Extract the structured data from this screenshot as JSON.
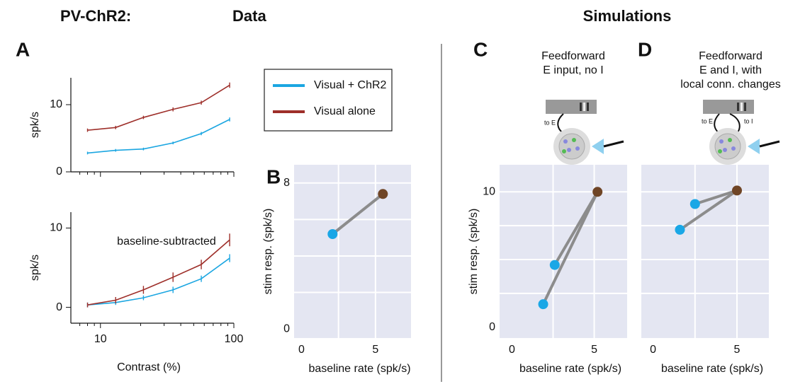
{
  "header": {
    "left": "PV-ChR2:",
    "data": "Data",
    "sim": "Simulations"
  },
  "chart_data": [
    {
      "type": "line",
      "label": "A",
      "ylabel": "spk/s",
      "xscale": "log",
      "x": [
        8,
        13,
        21,
        35,
        57,
        93
      ],
      "xlim": [
        6,
        100
      ],
      "xticks": [
        10,
        100
      ],
      "show_xtick_labels": false,
      "xminor": [
        7,
        8,
        9,
        20,
        30,
        40,
        50,
        60,
        70,
        80,
        90
      ],
      "ylim": [
        0,
        14
      ],
      "yticks": [
        0,
        10
      ],
      "series": [
        {
          "name": "Visual + ChR2",
          "color": "#1ba6e1",
          "values": [
            2.8,
            3.2,
            3.4,
            4.3,
            5.7,
            7.8
          ],
          "errors": [
            0.2,
            0.2,
            0.2,
            0.2,
            0.25,
            0.3
          ]
        },
        {
          "name": "Visual alone",
          "color": "#9e2f2a",
          "values": [
            6.2,
            6.6,
            8.1,
            9.3,
            10.3,
            12.9
          ],
          "errors": [
            0.25,
            0.25,
            0.25,
            0.3,
            0.3,
            0.4
          ]
        }
      ]
    },
    {
      "type": "line",
      "title": "baseline-subtracted",
      "ylabel": "spk/s",
      "xlabel": "Contrast (%)",
      "xscale": "log",
      "x": [
        8,
        13,
        21,
        35,
        57,
        93
      ],
      "xlim": [
        6,
        100
      ],
      "xticks": [
        10,
        100
      ],
      "show_xtick_labels": true,
      "xminor": [
        7,
        8,
        9,
        20,
        30,
        40,
        50,
        60,
        70,
        80,
        90
      ],
      "ylim": [
        -2,
        12
      ],
      "yticks": [
        0,
        10
      ],
      "series": [
        {
          "color": "#1ba6e1",
          "values": [
            0.3,
            0.6,
            1.2,
            2.2,
            3.6,
            6.2
          ],
          "errors": [
            0.3,
            0.3,
            0.3,
            0.4,
            0.4,
            0.5
          ]
        },
        {
          "color": "#9e2f2a",
          "values": [
            0.3,
            0.9,
            2.2,
            3.8,
            5.4,
            8.5
          ],
          "errors": [
            0.3,
            0.4,
            0.5,
            0.6,
            0.6,
            0.8
          ]
        }
      ]
    },
    {
      "type": "scatter",
      "label": "B",
      "xlabel": "baseline rate (spk/s)",
      "ylabel": "stim resp. (spk/s)",
      "xlim": [
        -0.5,
        7.4
      ],
      "ylim": [
        -0.5,
        9
      ],
      "xticks": [
        0,
        5
      ],
      "yticks": [
        0,
        8
      ],
      "xgrid": [
        2.5,
        5
      ],
      "ygrid": [
        2,
        4,
        6,
        8
      ],
      "background": "#e4e6f2",
      "series": [
        {
          "color": "#1aa7e6",
          "x": [
            2.1
          ],
          "values": [
            5.2
          ]
        },
        {
          "color": "#6f4526",
          "x": [
            5.5
          ],
          "values": [
            7.4
          ]
        }
      ]
    },
    {
      "type": "scatter",
      "label": "C",
      "annotation": [
        "Feedforward",
        "E input, no I"
      ],
      "icon_labels": [
        "to E"
      ],
      "xlabel": "baseline rate (spk/s)",
      "ylabel": "stim resp. (spk/s)",
      "xlim": [
        -0.75,
        7
      ],
      "ylim": [
        -0.8,
        12
      ],
      "xticks": [
        0,
        5
      ],
      "yticks": [
        0,
        10
      ],
      "xgrid": [
        2.5,
        5
      ],
      "ygrid": [
        2.5,
        5,
        7.5,
        10
      ],
      "background": "#e4e6f2",
      "series": [
        {
          "color": "#1aa7e6",
          "x": [
            2.6,
            1.9
          ],
          "values": [
            4.6,
            1.7
          ]
        },
        {
          "color": "#6f4526",
          "x": [
            5.2
          ],
          "values": [
            10
          ]
        }
      ]
    },
    {
      "type": "scatter",
      "label": "D",
      "annotation": [
        "Feedforward",
        "E and I, with",
        "local conn. changes"
      ],
      "icon_labels": [
        "to E",
        "to I"
      ],
      "xlabel": "baseline rate (spk/s)",
      "xlim": [
        -0.7,
        6.9
      ],
      "ylim": [
        -0.8,
        12
      ],
      "xticks": [
        0,
        5
      ],
      "yticks": [],
      "xgrid": [
        2.5,
        5
      ],
      "ygrid": [
        2.5,
        5,
        7.5,
        10
      ],
      "background": "#e4e6f2",
      "series": [
        {
          "color": "#1aa7e6",
          "x": [
            2.5,
            1.6
          ],
          "values": [
            9.1,
            7.2
          ]
        },
        {
          "color": "#6f4526",
          "x": [
            5.0
          ],
          "values": [
            10.1
          ]
        }
      ]
    }
  ]
}
